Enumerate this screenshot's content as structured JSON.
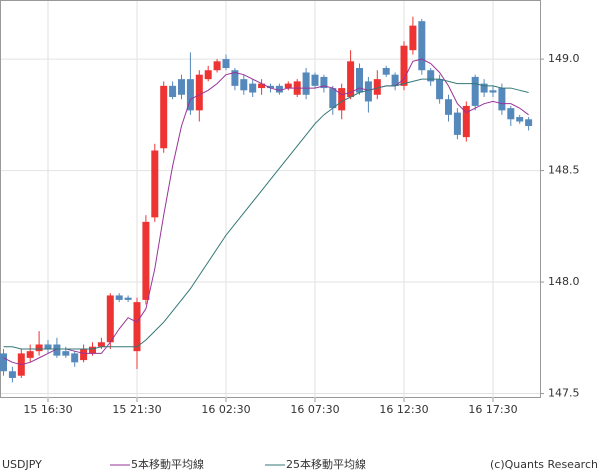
{
  "chart_data": {
    "type": "candlestick",
    "symbol": "USDJPY",
    "credit": "(c)Quants Research",
    "categories": [
      null,
      null,
      null,
      null,
      null,
      "15 16:30",
      null,
      null,
      null,
      null,
      null,
      null,
      null,
      null,
      null,
      "15 21:30",
      null,
      null,
      null,
      null,
      null,
      null,
      null,
      null,
      null,
      "16 02:30",
      null,
      null,
      null,
      null,
      null,
      null,
      null,
      null,
      null,
      "16 07:30",
      null,
      null,
      null,
      null,
      null,
      null,
      null,
      null,
      null,
      "16 12:30",
      null,
      null,
      null,
      null,
      null,
      null,
      null,
      null,
      null,
      "16 17:30",
      null,
      null,
      null,
      null
    ],
    "open": [
      147.68,
      147.6,
      147.58,
      147.66,
      147.69,
      147.72,
      147.72,
      147.69,
      147.68,
      147.65,
      147.68,
      147.71,
      147.73,
      147.94,
      147.93,
      147.69,
      147.92,
      148.29,
      148.6,
      148.88,
      148.91,
      148.91,
      148.77,
      148.91,
      148.95,
      149.0,
      148.95,
      148.91,
      148.89,
      148.87,
      148.88,
      148.88,
      148.87,
      148.84,
      148.94,
      148.93,
      148.92,
      148.87,
      148.77,
      148.83,
      148.96,
      148.9,
      148.84,
      148.96,
      148.93,
      148.88,
      149.04,
      149.17,
      148.95,
      148.91,
      148.82,
      148.76,
      148.65,
      148.92,
      148.89,
      148.86,
      148.87,
      148.78,
      148.74,
      148.73
    ],
    "high": [
      147.7,
      147.62,
      147.7,
      147.72,
      147.78,
      147.74,
      147.75,
      147.71,
      147.69,
      147.72,
      147.73,
      147.75,
      147.95,
      147.95,
      147.94,
      147.93,
      148.3,
      148.62,
      148.9,
      148.9,
      148.93,
      149.03,
      148.95,
      148.97,
      149.0,
      149.02,
      148.96,
      148.93,
      148.91,
      148.91,
      148.89,
      148.89,
      148.9,
      148.91,
      148.96,
      148.94,
      148.93,
      148.88,
      148.89,
      149.04,
      148.98,
      148.92,
      148.95,
      148.97,
      148.94,
      149.08,
      149.19,
      149.18,
      148.96,
      148.93,
      148.84,
      148.78,
      148.81,
      148.93,
      148.91,
      148.88,
      148.89,
      148.79,
      148.75,
      148.74
    ],
    "low": [
      147.58,
      147.55,
      147.57,
      147.64,
      147.67,
      147.68,
      147.66,
      147.66,
      147.62,
      147.64,
      147.67,
      147.7,
      147.7,
      147.91,
      147.91,
      147.61,
      147.9,
      148.27,
      148.58,
      148.82,
      148.82,
      148.75,
      148.72,
      148.9,
      148.94,
      148.95,
      148.86,
      148.84,
      148.83,
      148.84,
      148.85,
      148.84,
      148.86,
      148.83,
      148.82,
      148.87,
      148.85,
      148.75,
      148.73,
      148.82,
      148.84,
      148.76,
      148.82,
      148.92,
      148.86,
      148.86,
      149.02,
      148.93,
      148.88,
      148.8,
      148.72,
      148.64,
      148.63,
      148.77,
      148.83,
      148.83,
      148.75,
      148.7,
      148.71,
      148.68
    ],
    "close": [
      147.6,
      147.57,
      147.68,
      147.69,
      147.72,
      147.7,
      147.67,
      147.67,
      147.64,
      147.7,
      147.71,
      147.73,
      147.94,
      147.92,
      147.92,
      147.91,
      148.27,
      148.59,
      148.88,
      148.83,
      148.84,
      148.77,
      148.93,
      148.95,
      148.99,
      148.96,
      148.88,
      148.86,
      148.85,
      148.89,
      148.87,
      148.85,
      148.89,
      148.9,
      148.84,
      148.88,
      148.87,
      148.78,
      148.87,
      148.99,
      148.85,
      148.81,
      148.91,
      148.93,
      148.88,
      149.06,
      149.15,
      148.95,
      148.9,
      148.82,
      148.75,
      148.66,
      148.79,
      148.79,
      148.85,
      148.85,
      148.77,
      148.73,
      148.72,
      148.7
    ],
    "up_color": "#ee3333",
    "down_color": "#5588bb",
    "series": [
      {
        "name": "5本移動平均線",
        "color": "#993399",
        "values": [
          147.66,
          147.64,
          147.63,
          147.64,
          147.66,
          147.68,
          147.7,
          147.7,
          147.69,
          147.68,
          147.68,
          147.68,
          147.73,
          147.79,
          147.84,
          147.82,
          147.88,
          148.06,
          148.3,
          148.52,
          148.7,
          148.82,
          148.84,
          148.86,
          148.89,
          148.93,
          148.94,
          148.93,
          148.91,
          148.89,
          148.87,
          148.86,
          148.87,
          148.87,
          148.87,
          148.87,
          148.88,
          148.87,
          148.84,
          148.85,
          148.87,
          148.86,
          148.87,
          148.88,
          148.88,
          148.91,
          148.99,
          149.0,
          148.98,
          148.94,
          148.88,
          148.8,
          148.76,
          148.78,
          148.8,
          148.81,
          148.8,
          148.8,
          148.78,
          148.75
        ]
      },
      {
        "name": "25本移動平均線",
        "color": "#337777",
        "values": [
          147.71,
          147.71,
          147.7,
          147.7,
          147.7,
          147.7,
          147.7,
          147.7,
          147.7,
          147.7,
          147.7,
          147.71,
          147.71,
          147.71,
          147.71,
          147.71,
          147.74,
          147.78,
          147.82,
          147.87,
          147.92,
          147.97,
          148.03,
          148.09,
          148.15,
          148.21,
          148.26,
          148.31,
          148.36,
          148.41,
          148.46,
          148.51,
          148.56,
          148.61,
          148.66,
          148.71,
          148.75,
          148.78,
          148.81,
          148.83,
          148.85,
          148.86,
          148.87,
          148.88,
          148.88,
          148.89,
          148.9,
          148.91,
          148.91,
          148.91,
          148.9,
          148.89,
          148.89,
          148.89,
          148.88,
          148.88,
          148.87,
          148.87,
          148.86,
          148.85
        ]
      }
    ],
    "ylim": [
      147.48,
      149.265
    ],
    "yticks": [
      147.5,
      {
        "value": 148.0,
        "label": "148.0"
      },
      148.5,
      {
        "value": 149.0,
        "label": "149.0"
      }
    ],
    "grid": true
  }
}
